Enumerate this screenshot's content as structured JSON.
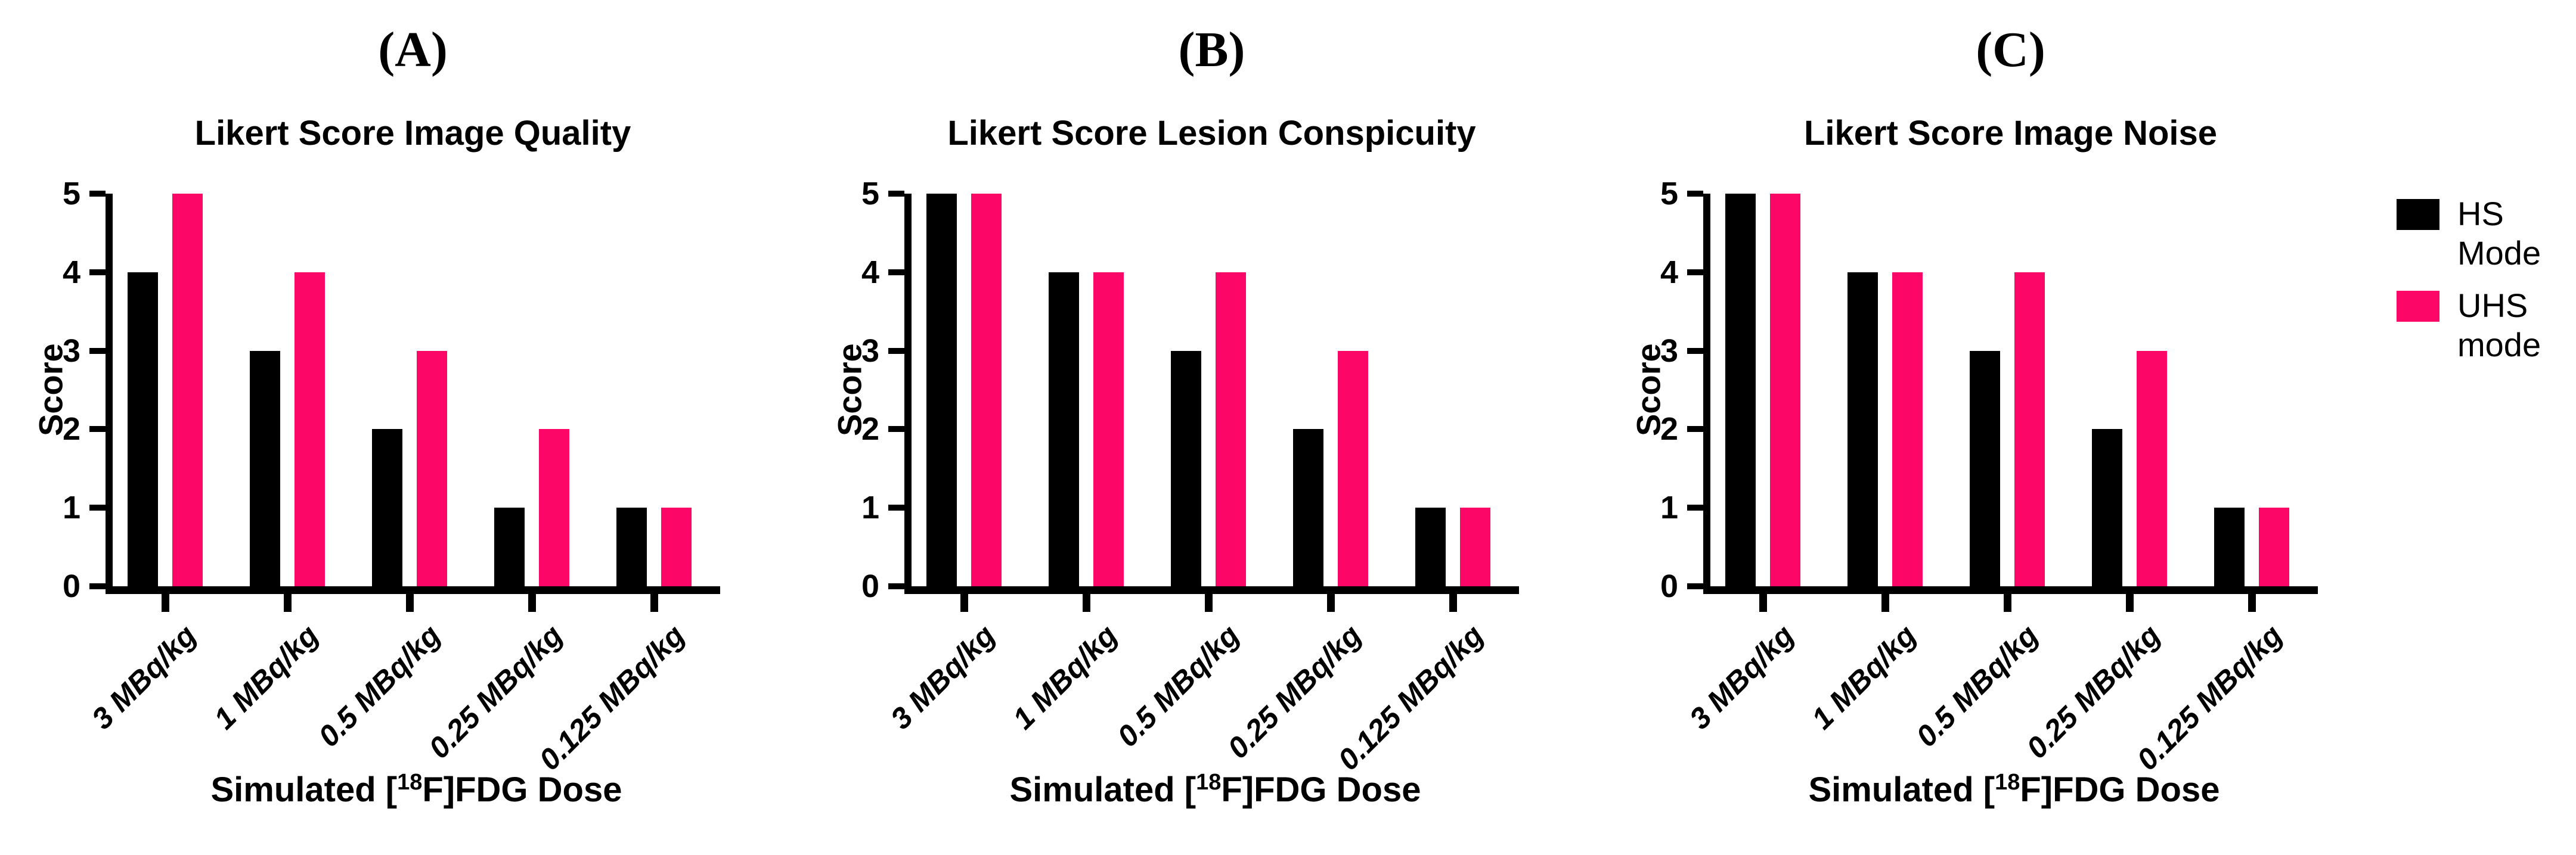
{
  "figure": {
    "background": "#FFFFFF",
    "accent_colors": {
      "hs_black": "#000000",
      "uhs_pink": "#FC0768"
    }
  },
  "legend": {
    "position": "right-of-figure",
    "items": [
      {
        "name": "HS Mode",
        "line1": "HS",
        "line2": "Mode",
        "color": "#000000"
      },
      {
        "name": "UHS mode",
        "line1": "UHS",
        "line2": "mode",
        "color": "#FC0768"
      }
    ]
  },
  "chart_data": [
    {
      "type": "bar",
      "panel_label": "(A)",
      "title": "Likert Score Image Quality",
      "ylabel": "Score",
      "xlabel": "Simulated [18F]FDG Dose",
      "xlabel_parts": {
        "prefix": "Simulated [",
        "sup": "18",
        "suffix": "F]FDG Dose"
      },
      "ylim": [
        0,
        5
      ],
      "yticks": [
        0,
        1,
        2,
        3,
        4,
        5
      ],
      "grid": false,
      "categories": [
        "3 MBq/kg",
        "1 MBq/kg",
        "0.5 MBq/kg",
        "0.25 MBq/kg",
        "0.125 MBq/kg"
      ],
      "series": [
        {
          "name": "HS Mode",
          "color": "#000000",
          "values": [
            4,
            3,
            2,
            1,
            1
          ]
        },
        {
          "name": "UHS mode",
          "color": "#FC0768",
          "values": [
            5,
            4,
            3,
            2,
            1
          ]
        }
      ]
    },
    {
      "type": "bar",
      "panel_label": "(B)",
      "title": "Likert Score Lesion Conspicuity",
      "ylabel": "Score",
      "xlabel": "Simulated [18F]FDG Dose",
      "xlabel_parts": {
        "prefix": "Simulated [",
        "sup": "18",
        "suffix": "F]FDG Dose"
      },
      "ylim": [
        0,
        5
      ],
      "yticks": [
        0,
        1,
        2,
        3,
        4,
        5
      ],
      "grid": false,
      "categories": [
        "3 MBq/kg",
        "1 MBq/kg",
        "0.5 MBq/kg",
        "0.25 MBq/kg",
        "0.125 MBq/kg"
      ],
      "series": [
        {
          "name": "HS Mode",
          "color": "#000000",
          "values": [
            5,
            4,
            3,
            2,
            1
          ]
        },
        {
          "name": "UHS mode",
          "color": "#FC0768",
          "values": [
            5,
            4,
            4,
            3,
            1
          ]
        }
      ]
    },
    {
      "type": "bar",
      "panel_label": "(C)",
      "title": "Likert Score Image  Noise",
      "ylabel": "Score",
      "xlabel": "Simulated [18F]FDG Dose",
      "xlabel_parts": {
        "prefix": "Simulated [",
        "sup": "18",
        "suffix": "F]FDG Dose"
      },
      "ylim": [
        0,
        5
      ],
      "yticks": [
        0,
        1,
        2,
        3,
        4,
        5
      ],
      "grid": false,
      "categories": [
        "3 MBq/kg",
        "1 MBq/kg",
        "0.5 MBq/kg",
        "0.25 MBq/kg",
        "0.125 MBq/kg"
      ],
      "series": [
        {
          "name": "HS Mode",
          "color": "#000000",
          "values": [
            5,
            4,
            3,
            2,
            1
          ]
        },
        {
          "name": "UHS mode",
          "color": "#FC0768",
          "values": [
            5,
            4,
            4,
            3,
            1
          ]
        }
      ]
    }
  ]
}
